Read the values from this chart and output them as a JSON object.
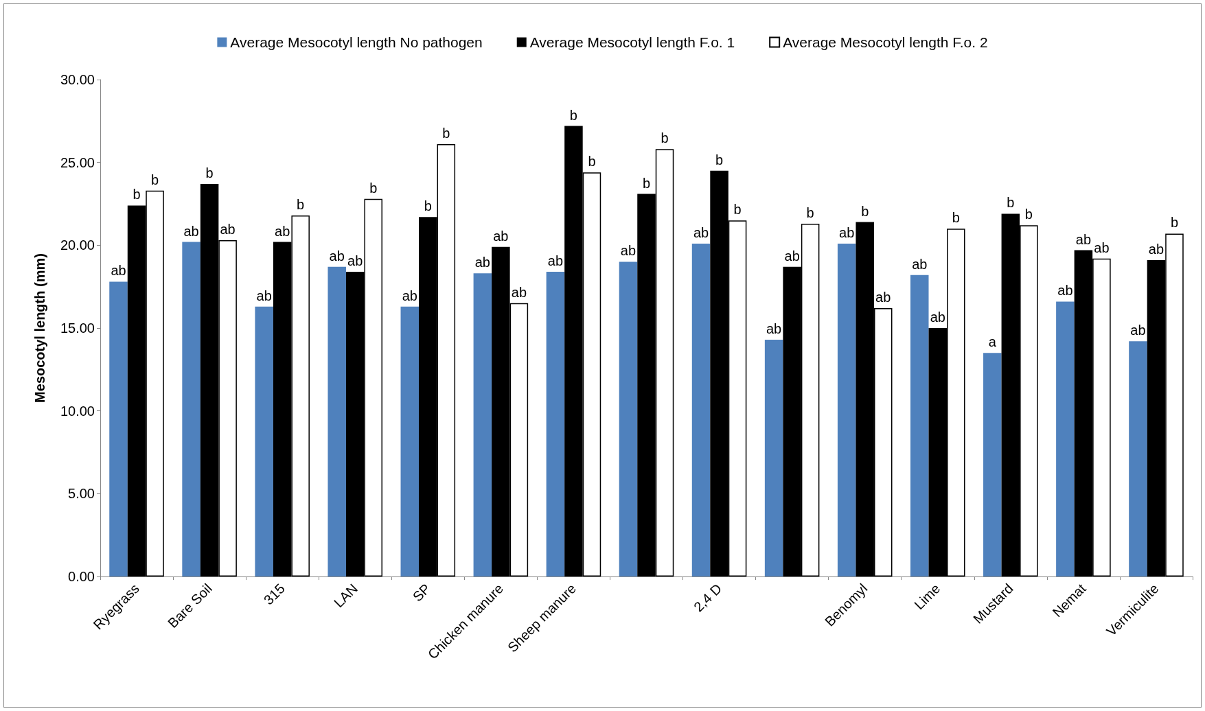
{
  "chart_data": {
    "type": "bar",
    "ylabel": "Mesocotyl length (mm)",
    "categories": [
      "Ryegrass",
      "Bare Soil",
      "315",
      "LAN",
      "SP",
      "Chicken manure",
      "Sheep manure",
      null,
      "2,4 D",
      null,
      "Benomyl",
      "Lime",
      "Mustard",
      "Nemat",
      "Vermiculite"
    ],
    "series": [
      {
        "name": "Average Mesocotyl length No pathogen",
        "color": "#4f81bd",
        "values": [
          17.8,
          20.2,
          16.3,
          18.7,
          16.3,
          18.3,
          18.4,
          19.0,
          20.1,
          14.3,
          20.1,
          18.2,
          13.5,
          16.6,
          14.2
        ],
        "value_labels": [
          "ab",
          "ab",
          "ab",
          "ab",
          "ab",
          "ab",
          "ab",
          "ab",
          "ab",
          "ab",
          "ab",
          "ab",
          "a",
          "ab",
          "ab"
        ]
      },
      {
        "name": "Average Mesocotyl length F.o. 1",
        "color": "#000000",
        "values": [
          22.4,
          23.7,
          20.2,
          18.4,
          21.7,
          19.9,
          27.2,
          23.1,
          24.5,
          18.7,
          21.4,
          15.0,
          21.9,
          19.7,
          19.1
        ],
        "value_labels": [
          "b",
          "b",
          "ab",
          "ab",
          "b",
          "ab",
          "b",
          "b",
          "b",
          "ab",
          "b",
          "ab",
          "b",
          "ab",
          "ab"
        ]
      },
      {
        "name": "Average Mesocotyl length F.o. 2",
        "color": "#ffffff",
        "values": [
          23.3,
          20.3,
          21.8,
          22.8,
          26.1,
          16.5,
          24.4,
          25.8,
          21.5,
          21.3,
          16.2,
          21.0,
          21.2,
          19.2,
          20.7
        ],
        "value_labels": [
          "b",
          "ab",
          "b",
          "b",
          "b",
          "ab",
          "b",
          "b",
          "b",
          "b",
          "ab",
          "b",
          "b",
          "ab",
          "b"
        ]
      }
    ],
    "ylim": [
      0,
      30
    ],
    "yticks": [
      {
        "value": 0,
        "label": "0.00"
      },
      {
        "value": 5,
        "label": "5.00"
      },
      {
        "value": 10,
        "label": "10.00"
      },
      {
        "value": 15,
        "label": "15.00"
      },
      {
        "value": 20,
        "label": "20.00"
      },
      {
        "value": 25,
        "label": "25.00"
      },
      {
        "value": 30,
        "label": "30.00"
      }
    ],
    "grid": false,
    "legend": "top"
  }
}
